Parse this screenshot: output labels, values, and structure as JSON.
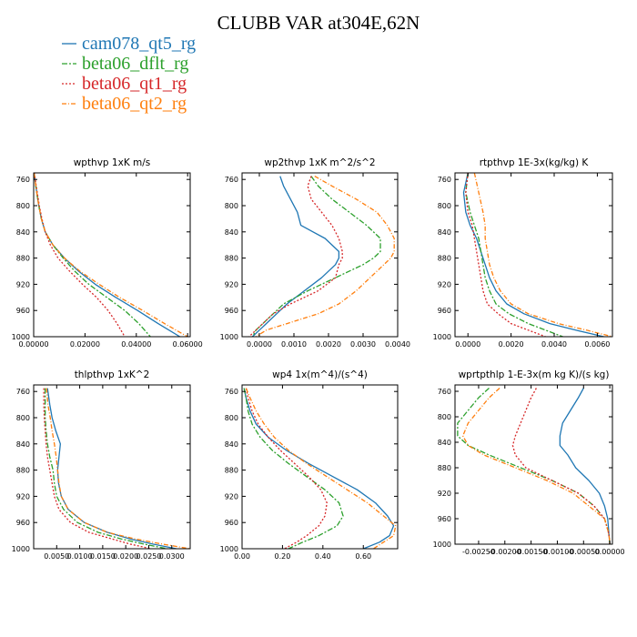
{
  "title": "CLUBB VAR at304E,62N",
  "legend": [
    {
      "name": "cam078_qt5_rg",
      "color": "#1f77b4",
      "dash": ""
    },
    {
      "name": "beta06_dflt_rg",
      "color": "#2ca02c",
      "dash": "6,2,2,2"
    },
    {
      "name": "beta06_qt1_rg",
      "color": "#d62728",
      "dash": "2,2"
    },
    {
      "name": "beta06_qt2_rg",
      "color": "#ff7f0e",
      "dash": "5,2,1,2"
    }
  ],
  "chart_data": [
    {
      "type": "line",
      "title": "wpthvp  1xK m/s",
      "ylim": [
        1000,
        750
      ],
      "yticks": [
        760,
        800,
        840,
        880,
        920,
        960,
        1000
      ],
      "xlim": [
        0,
        0.061
      ],
      "xticks": [
        0,
        0.02,
        0.04,
        0.06
      ],
      "xtick_labels": [
        "0.00000",
        "0.02000",
        "0.04000",
        "0.06000"
      ],
      "y": [
        750,
        760,
        780,
        800,
        820,
        840,
        860,
        880,
        900,
        920,
        940,
        960,
        980,
        1000
      ],
      "series": [
        {
          "name": "cam078_qt5_rg",
          "x": [
            0.0002,
            0.0005,
            0.0012,
            0.002,
            0.003,
            0.0045,
            0.0075,
            0.012,
            0.0175,
            0.024,
            0.032,
            0.0405,
            0.0485,
            0.057
          ]
        },
        {
          "name": "beta06_dflt_rg",
          "x": [
            0.0002,
            0.0005,
            0.0012,
            0.002,
            0.003,
            0.0045,
            0.0075,
            0.0115,
            0.016,
            0.0215,
            0.0285,
            0.0355,
            0.041,
            0.0455
          ]
        },
        {
          "name": "beta06_qt1_rg",
          "x": [
            0.0002,
            0.0006,
            0.0014,
            0.0022,
            0.0032,
            0.0045,
            0.0065,
            0.0095,
            0.014,
            0.019,
            0.0245,
            0.029,
            0.0325,
            0.0355
          ]
        },
        {
          "name": "beta06_qt2_rg",
          "x": [
            0.0002,
            0.0005,
            0.0012,
            0.002,
            0.003,
            0.0045,
            0.0075,
            0.012,
            0.018,
            0.0255,
            0.0335,
            0.0425,
            0.051,
            0.06
          ]
        }
      ]
    },
    {
      "type": "line",
      "title": "wp2thvp  1xK m^2/s^2",
      "ylim": [
        1000,
        750
      ],
      "yticks": [
        760,
        800,
        840,
        880,
        920,
        960,
        1000
      ],
      "xlim": [
        -0.0005,
        0.004
      ],
      "xticks": [
        0,
        0.001,
        0.002,
        0.003,
        0.004
      ],
      "xtick_labels": [
        "0.0000",
        "0.0010",
        "0.0020",
        "0.0030",
        "0.0040"
      ],
      "y": [
        755,
        770,
        790,
        810,
        830,
        850,
        870,
        880,
        890,
        910,
        930,
        950,
        965,
        980,
        990,
        1000
      ],
      "series": [
        {
          "name": "cam078_qt5_rg",
          "x": [
            0.0006,
            0.0007,
            0.0009,
            0.0011,
            0.0012,
            0.0019,
            0.0023,
            0.0023,
            0.0022,
            0.0018,
            0.0013,
            0.0008,
            0.0005,
            0.0002,
            0.0,
            -0.0002
          ]
        },
        {
          "name": "beta06_dflt_rg",
          "x": [
            0.0015,
            0.0017,
            0.0021,
            0.0026,
            0.0031,
            0.0035,
            0.0035,
            0.0033,
            0.003,
            0.0022,
            0.0014,
            0.0007,
            0.0004,
            0.0001,
            -0.0001,
            -0.0002
          ]
        },
        {
          "name": "beta06_qt1_rg",
          "x": [
            0.0015,
            0.0014,
            0.0015,
            0.0018,
            0.0021,
            0.0023,
            0.0024,
            0.0024,
            0.0023,
            0.0022,
            0.0017,
            0.0009,
            0.0004,
            0.0001,
            -0.0001,
            -0.0003
          ]
        },
        {
          "name": "beta06_qt2_rg",
          "x": [
            0.0016,
            0.0021,
            0.0028,
            0.0034,
            0.0037,
            0.0039,
            0.0039,
            0.0038,
            0.0036,
            0.0032,
            0.0028,
            0.0023,
            0.0017,
            0.0008,
            0.0002,
            -0.0001
          ]
        }
      ]
    },
    {
      "type": "line",
      "title": "rtpthvp  1E-3x(kg/kg) K",
      "ylim": [
        1000,
        750
      ],
      "yticks": [
        760,
        800,
        840,
        880,
        920,
        960,
        1000
      ],
      "xlim": [
        -0.0006,
        0.0067
      ],
      "xticks": [
        0,
        0.002,
        0.004,
        0.006
      ],
      "xtick_labels": [
        "0.0000",
        "0.0020",
        "0.0040",
        "0.0060"
      ],
      "y": [
        750,
        780,
        810,
        830,
        850,
        870,
        890,
        910,
        930,
        950,
        965,
        980,
        990,
        1000
      ],
      "series": [
        {
          "name": "cam078_qt5_rg",
          "x": [
            0.0,
            -0.0002,
            -0.0001,
            0.0001,
            0.0004,
            0.0006,
            0.0008,
            0.001,
            0.0013,
            0.0018,
            0.0026,
            0.0038,
            0.005,
            0.0063
          ]
        },
        {
          "name": "beta06_dflt_rg",
          "x": [
            0.0,
            -0.0001,
            0.0001,
            0.0003,
            0.0005,
            0.0006,
            0.0007,
            0.0008,
            0.001,
            0.0013,
            0.0019,
            0.0028,
            0.0036,
            0.0044
          ]
        },
        {
          "name": "beta06_qt1_rg",
          "x": [
            0.0,
            -0.0001,
            0.0,
            0.0002,
            0.0003,
            0.0004,
            0.0005,
            0.0006,
            0.0007,
            0.0009,
            0.0014,
            0.002,
            0.0028,
            0.0036
          ]
        },
        {
          "name": "beta06_qt2_rg",
          "x": [
            0.0003,
            0.0005,
            0.0007,
            0.0008,
            0.0008,
            0.0009,
            0.001,
            0.0012,
            0.0015,
            0.002,
            0.0028,
            0.0042,
            0.0055,
            0.0067
          ]
        }
      ]
    },
    {
      "type": "line",
      "title": "thlpthvp  1xK^2",
      "ylim": [
        1000,
        750
      ],
      "yticks": [
        760,
        800,
        840,
        880,
        920,
        960,
        1000
      ],
      "xlim": [
        0,
        0.034
      ],
      "xticks": [
        0.005,
        0.01,
        0.015,
        0.02,
        0.025,
        0.03
      ],
      "xtick_labels": [
        "0.0050",
        "0.0100",
        "0.0150",
        "0.0200",
        "0.0250",
        "0.0300"
      ],
      "y": [
        755,
        780,
        800,
        820,
        840,
        860,
        880,
        900,
        920,
        940,
        960,
        975,
        985,
        993,
        1000
      ],
      "series": [
        {
          "name": "cam078_qt5_rg",
          "x": [
            0.003,
            0.0035,
            0.004,
            0.0048,
            0.0058,
            0.0055,
            0.0052,
            0.0054,
            0.006,
            0.0075,
            0.011,
            0.016,
            0.021,
            0.026,
            0.031
          ]
        },
        {
          "name": "beta06_dflt_rg",
          "x": [
            0.0025,
            0.0025,
            0.0025,
            0.0027,
            0.003,
            0.0035,
            0.0042,
            0.0045,
            0.005,
            0.0065,
            0.0095,
            0.014,
            0.019,
            0.024,
            0.029
          ]
        },
        {
          "name": "beta06_qt1_rg",
          "x": [
            0.0022,
            0.0022,
            0.0023,
            0.0025,
            0.0027,
            0.003,
            0.0035,
            0.004,
            0.0045,
            0.0055,
            0.008,
            0.012,
            0.017,
            0.021,
            0.0255
          ]
        },
        {
          "name": "beta06_qt2_rg",
          "x": [
            0.0028,
            0.0031,
            0.0036,
            0.004,
            0.0045,
            0.0049,
            0.0052,
            0.0055,
            0.006,
            0.0075,
            0.011,
            0.016,
            0.022,
            0.028,
            0.034
          ]
        }
      ]
    },
    {
      "type": "line",
      "title": "wp4  1x(m^4)/(s^4)",
      "ylim": [
        1000,
        750
      ],
      "yticks": [
        760,
        800,
        840,
        880,
        920,
        960,
        1000
      ],
      "xlim": [
        0,
        0.77
      ],
      "xticks": [
        0,
        0.2,
        0.4,
        0.6
      ],
      "xtick_labels": [
        "0.00",
        "0.20",
        "0.40",
        "0.60"
      ],
      "y": [
        755,
        770,
        790,
        810,
        830,
        850,
        870,
        890,
        910,
        930,
        950,
        965,
        980,
        990,
        1000
      ],
      "series": [
        {
          "name": "cam078_qt5_rg",
          "x": [
            0.01,
            0.02,
            0.04,
            0.07,
            0.13,
            0.22,
            0.33,
            0.45,
            0.57,
            0.66,
            0.72,
            0.75,
            0.73,
            0.68,
            0.6
          ]
        },
        {
          "name": "beta06_dflt_rg",
          "x": [
            0.01,
            0.02,
            0.03,
            0.05,
            0.09,
            0.15,
            0.23,
            0.32,
            0.41,
            0.48,
            0.5,
            0.47,
            0.38,
            0.3,
            0.23
          ]
        },
        {
          "name": "beta06_qt1_rg",
          "x": [
            0.02,
            0.03,
            0.05,
            0.08,
            0.13,
            0.19,
            0.26,
            0.33,
            0.39,
            0.42,
            0.41,
            0.38,
            0.32,
            0.27,
            0.21
          ]
        },
        {
          "name": "beta06_qt2_rg",
          "x": [
            0.02,
            0.04,
            0.07,
            0.11,
            0.16,
            0.23,
            0.32,
            0.42,
            0.52,
            0.62,
            0.7,
            0.76,
            0.75,
            0.7,
            0.65
          ]
        }
      ]
    },
    {
      "type": "line",
      "title": "wprtpthlp  1-E-3x(m kg K)/(s kg)",
      "ylim": [
        1000,
        750
      ],
      "yticks": [
        760,
        800,
        840,
        880,
        920,
        960,
        1000
      ],
      "xlim": [
        -0.00295,
        5e-05
      ],
      "xticks": [
        -0.0025,
        -0.002,
        -0.0015,
        -0.001,
        -0.0005,
        0
      ],
      "xtick_labels": [
        "-0.00250",
        "-0.00200",
        "-0.00150",
        "-0.00100",
        "-0.00050",
        "0.00000"
      ],
      "y": [
        755,
        770,
        790,
        810,
        830,
        845,
        860,
        880,
        900,
        920,
        940,
        960,
        980,
        990,
        1000
      ],
      "series": [
        {
          "name": "cam078_qt5_rg",
          "x": [
            -0.0005,
            -0.0006,
            -0.00075,
            -0.0009,
            -0.00095,
            -0.00095,
            -0.0008,
            -0.00065,
            -0.0004,
            -0.0002,
            -0.0001,
            -4e-05,
            -2e-05,
            -1e-05,
            0.0
          ]
        },
        {
          "name": "beta06_dflt_rg",
          "x": [
            -0.0023,
            -0.0025,
            -0.0027,
            -0.0029,
            -0.0029,
            -0.0027,
            -0.0023,
            -0.0017,
            -0.0011,
            -0.0006,
            -0.0003,
            -0.0001,
            -3e-05,
            -1e-05,
            0.0
          ]
        },
        {
          "name": "beta06_qt1_rg",
          "x": [
            -0.0014,
            -0.0015,
            -0.0016,
            -0.0017,
            -0.0018,
            -0.00185,
            -0.0018,
            -0.0016,
            -0.0011,
            -0.0006,
            -0.0003,
            -0.0001,
            -3e-05,
            -1e-05,
            0.0
          ]
        },
        {
          "name": "beta06_qt2_rg",
          "x": [
            -0.0021,
            -0.0023,
            -0.0025,
            -0.0027,
            -0.0028,
            -0.0027,
            -0.0024,
            -0.0018,
            -0.0012,
            -0.0007,
            -0.0004,
            -0.0001,
            -3e-05,
            -1e-05,
            0.0
          ]
        }
      ]
    }
  ]
}
